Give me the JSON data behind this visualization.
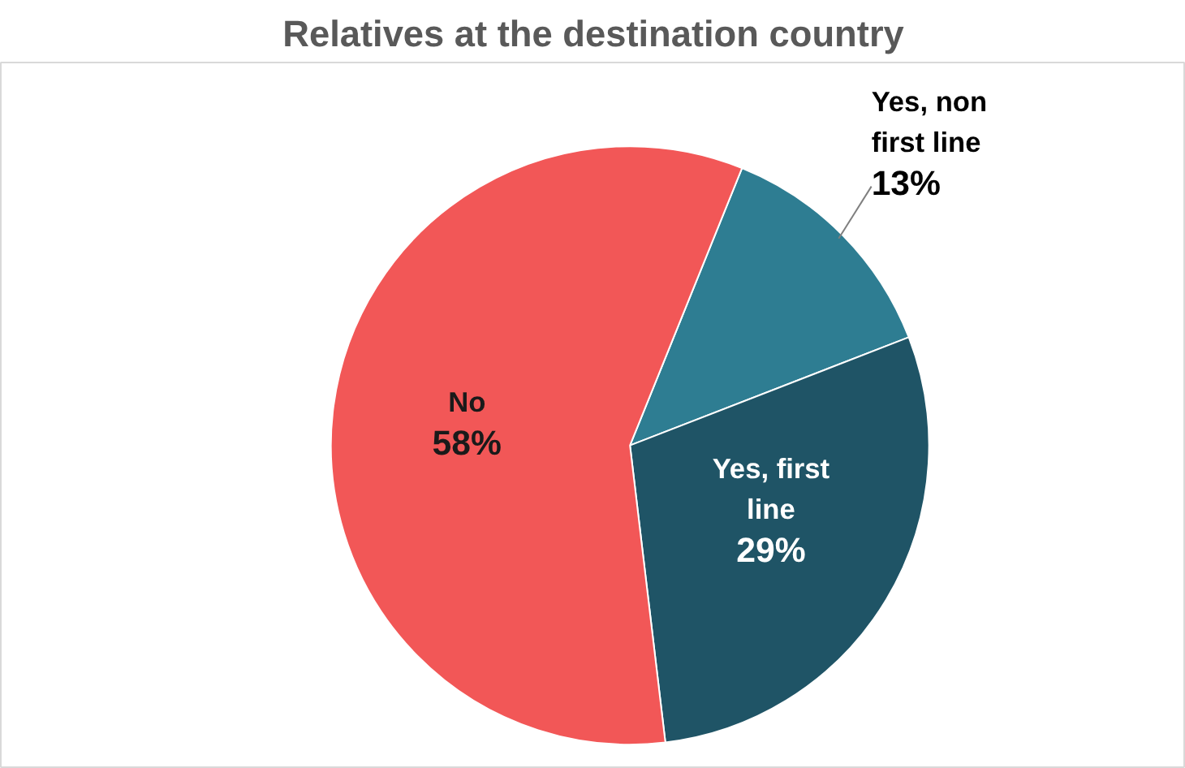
{
  "chart_data": {
    "type": "pie",
    "title": "Relatives at the destination country",
    "categories": [
      "Yes, non first line",
      "Yes, first line",
      "No"
    ],
    "values": [
      13,
      29,
      58
    ],
    "colors": [
      "#2e7d92",
      "#1f5466",
      "#f25757"
    ],
    "value_labels": [
      "13%",
      "29%",
      "58%"
    ]
  }
}
